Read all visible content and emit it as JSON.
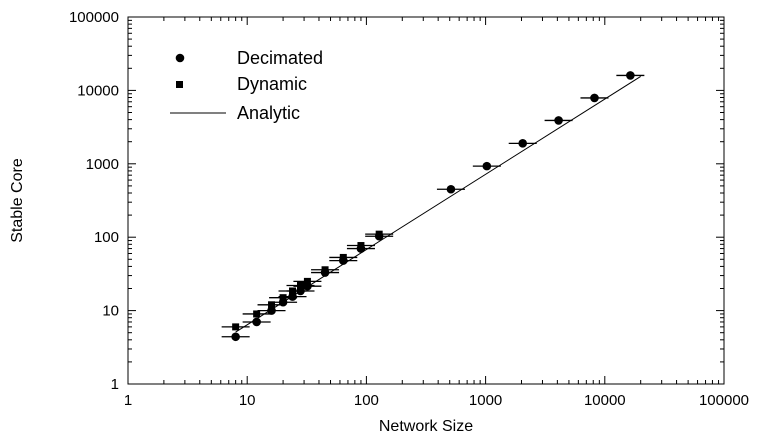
{
  "chart_data": {
    "type": "scatter",
    "xlabel": "Network Size",
    "ylabel": "Stable Core",
    "xscale": "log",
    "yscale": "log",
    "xlim": [
      1,
      100000
    ],
    "ylim": [
      1,
      100000
    ],
    "x_tick_labels": [
      "1",
      "10",
      "100",
      "1000",
      "10000",
      "100000"
    ],
    "y_tick_labels": [
      "1",
      "10",
      "100",
      "1000",
      "10000",
      "100000"
    ],
    "grid": false,
    "legend": {
      "position": "top-left"
    },
    "series": [
      {
        "name": "Decimated",
        "marker": "circle",
        "error_bars": "horizontal",
        "points": [
          [
            8,
            4.4
          ],
          [
            12,
            7
          ],
          [
            16,
            10
          ],
          [
            20,
            13
          ],
          [
            24,
            15.5
          ],
          [
            28,
            18.5
          ],
          [
            32,
            21.5
          ],
          [
            45,
            33
          ],
          [
            64,
            48
          ],
          [
            90,
            70
          ],
          [
            128,
            103
          ],
          [
            512,
            450
          ],
          [
            1024,
            930
          ],
          [
            2048,
            1900
          ],
          [
            4096,
            3900
          ],
          [
            8192,
            7900
          ],
          [
            16384,
            16000
          ]
        ]
      },
      {
        "name": "Dynamic",
        "marker": "square",
        "error_bars": "horizontal",
        "points": [
          [
            8,
            6
          ],
          [
            12,
            9
          ],
          [
            16,
            12
          ],
          [
            20,
            15
          ],
          [
            24,
            18.5
          ],
          [
            28,
            22
          ],
          [
            32,
            25
          ],
          [
            45,
            36
          ],
          [
            64,
            53
          ],
          [
            90,
            77
          ],
          [
            128,
            110
          ]
        ]
      },
      {
        "name": "Analytic",
        "style": "line",
        "points": [
          [
            8,
            5.1
          ],
          [
            20000,
            15500
          ]
        ]
      }
    ]
  }
}
